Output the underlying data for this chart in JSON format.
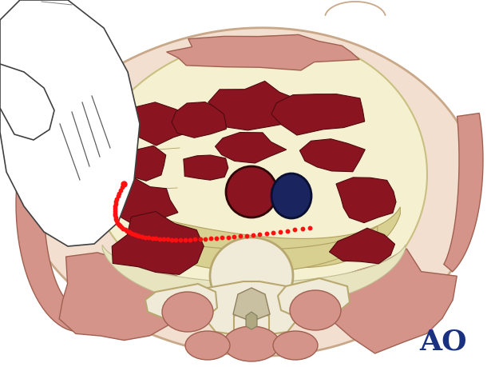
{
  "bg_color": "#ffffff",
  "skin_outer_color": "#f2dfd0",
  "skin_outer_edge": "#c8a888",
  "skin_fat_color": "#f0e8d8",
  "cavity_color": "#f5f0d0",
  "cavity_edge": "#c8c080",
  "fascia_color": "#d8d090",
  "fascia_edge": "#b0a060",
  "muscle_pink_color": "#d4948a",
  "muscle_pink_edge": "#a06050",
  "muscle_dark_color": "#8a1520",
  "muscle_dark_edge": "#500a10",
  "artery_color": "#8a1520",
  "artery_edge": "#300508",
  "vein_color": "#1a2560",
  "vein_edge": "#080f30",
  "bone_color": "#f0ead8",
  "bone_edge": "#b8a870",
  "spinal_gray_color": "#c8c0a0",
  "spinal_gray_edge": "#908060",
  "hand_color": "#ffffff",
  "hand_edge": "#404040",
  "dot_color": "#ff1010",
  "ao_color": "#1a3080",
  "figsize": [
    6.2,
    4.59
  ],
  "dpi": 100
}
